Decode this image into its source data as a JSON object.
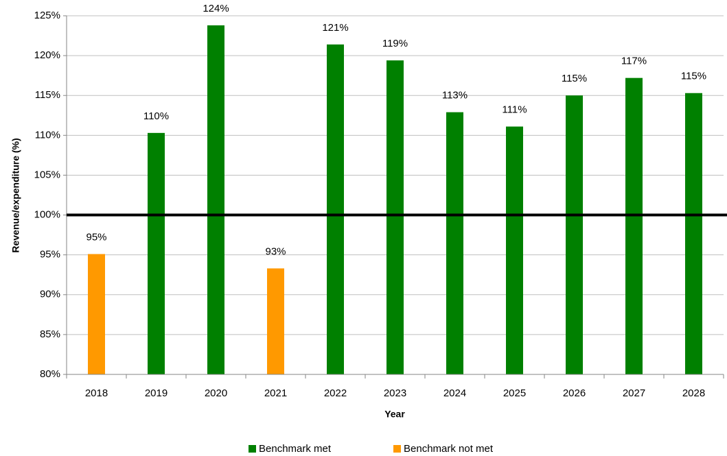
{
  "chart_data": {
    "type": "bar",
    "x_label": "Year",
    "y_label": "Revenue/expenditure (%)",
    "categories": [
      "2018",
      "2019",
      "2020",
      "2021",
      "2022",
      "2023",
      "2024",
      "2025",
      "2026",
      "2027",
      "2028"
    ],
    "series": [
      {
        "name": "Benchmark met",
        "color": "#008000",
        "values": [
          null,
          110.3,
          123.8,
          null,
          121.4,
          119.4,
          112.9,
          111.1,
          115.0,
          117.2,
          115.3
        ],
        "value_labels": [
          null,
          "110%",
          "124%",
          null,
          "121%",
          "119%",
          "113%",
          "111%",
          "115%",
          "117%",
          "115%"
        ]
      },
      {
        "name": "Benchmark not met",
        "color": "#ff9900",
        "values": [
          95.1,
          null,
          null,
          93.3,
          null,
          null,
          null,
          null,
          null,
          null,
          null
        ],
        "value_labels": [
          "95%",
          null,
          null,
          "93%",
          null,
          null,
          null,
          null,
          null,
          null,
          null
        ]
      }
    ],
    "threshold": 100,
    "ylim": [
      80,
      125
    ],
    "yticks": [
      {
        "value": 80,
        "label": "80%"
      },
      {
        "value": 85,
        "label": "85%"
      },
      {
        "value": 90,
        "label": "90%"
      },
      {
        "value": 95,
        "label": "95%"
      },
      {
        "value": 100,
        "label": "100%"
      },
      {
        "value": 105,
        "label": "105%"
      },
      {
        "value": 110,
        "label": "110%"
      },
      {
        "value": 115,
        "label": "115%"
      },
      {
        "value": 120,
        "label": "120%"
      },
      {
        "value": 125,
        "label": "125%"
      }
    ],
    "grid": true,
    "legend": "bottom"
  }
}
